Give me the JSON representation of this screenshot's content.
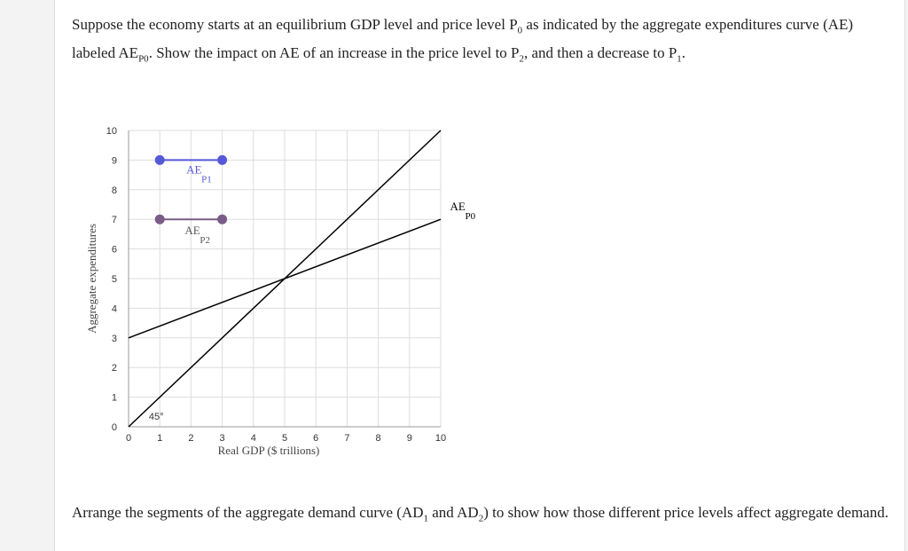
{
  "question": {
    "part1": "Suppose the economy starts at an equilibrium GDP level and price level P",
    "sub1": "0",
    "part2": " as indicated by the aggregate expenditures curve (AE) labeled AE",
    "sub2": "P0",
    "part3": ". Show the impact on AE of an increase in the price level to P",
    "sub3": "2",
    "part4": ", and then a decrease to P",
    "sub4": "1",
    "part5": "."
  },
  "instructions": {
    "part1": "Arrange the segments of the aggregate demand curve (AD",
    "sub1": "1",
    "part2": " and AD",
    "sub2": "2",
    "part3": ") to show how those different price levels affect aggregate demand."
  },
  "chart_data": {
    "type": "line",
    "xlabel": "Real GDP ($ trillions)",
    "ylabel": "Aggregate expenditures",
    "xlim": [
      0,
      10
    ],
    "ylim": [
      0,
      10
    ],
    "x_ticks": [
      "0",
      "1",
      "2",
      "3",
      "4",
      "5",
      "6",
      "7",
      "8",
      "9",
      "10"
    ],
    "y_ticks": [
      "0",
      "1",
      "2",
      "3",
      "4",
      "5",
      "6",
      "7",
      "8",
      "9",
      "10"
    ],
    "grid": true,
    "angle_label": "45°",
    "series": [
      {
        "name": "45° line",
        "points": [
          [
            0,
            0
          ],
          [
            10,
            10
          ]
        ],
        "color": "#000000"
      },
      {
        "label_main": "AE",
        "label_sub": "P0",
        "points": [
          [
            0,
            3
          ],
          [
            10,
            7
          ]
        ],
        "color": "#000000"
      },
      {
        "label_main": "AE",
        "label_sub": "P1",
        "points": [
          [
            1,
            9
          ],
          [
            3,
            9
          ]
        ],
        "color": "#5558d8",
        "markers": true
      },
      {
        "label_main": "AE",
        "label_sub": "P2",
        "points": [
          [
            1,
            7
          ],
          [
            3,
            7
          ]
        ],
        "color": "#7a5c88",
        "markers": true
      }
    ]
  }
}
